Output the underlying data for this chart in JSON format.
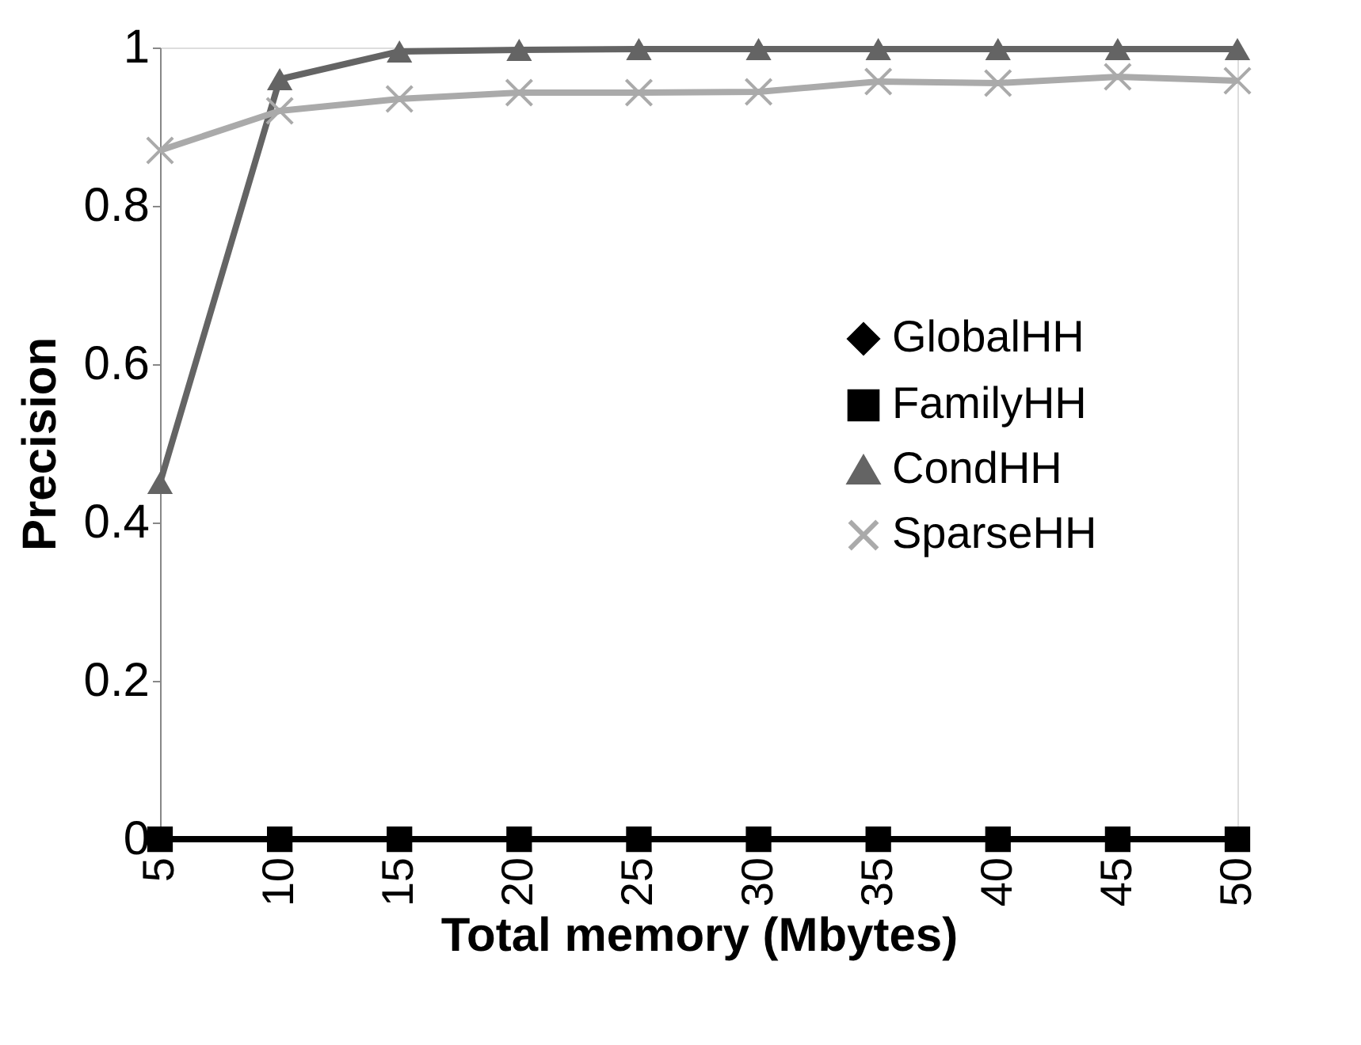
{
  "chart_data": {
    "type": "line",
    "xlabel": "Total memory (Mbytes)",
    "ylabel": "Precision",
    "categories": [
      "5",
      "10",
      "15",
      "20",
      "25",
      "30",
      "35",
      "40",
      "45",
      "50"
    ],
    "ylim": [
      0,
      1
    ],
    "yticks": [
      0,
      0.2,
      0.4,
      0.6,
      0.8,
      1
    ],
    "grid": false,
    "legend": "right",
    "series": [
      {
        "name": "GlobalHH",
        "color": "#000000",
        "marker": "diamond",
        "values": [
          null,
          null,
          null,
          null,
          null,
          null,
          null,
          null,
          null,
          null
        ]
      },
      {
        "name": "FamilyHH",
        "color": "#000000",
        "marker": "square",
        "values": [
          0,
          0,
          0,
          0,
          0,
          0,
          0,
          0,
          0,
          0
        ]
      },
      {
        "name": "CondHH",
        "color": "#646464",
        "marker": "triangle",
        "values": [
          0.45,
          0.96,
          0.995,
          0.997,
          0.998,
          0.998,
          0.998,
          0.998,
          0.998,
          0.998
        ]
      },
      {
        "name": "SparseHH",
        "color": "#aaaaaa",
        "marker": "cross",
        "values": [
          0.87,
          0.92,
          0.935,
          0.943,
          0.943,
          0.944,
          0.957,
          0.955,
          0.963,
          0.958
        ]
      }
    ]
  }
}
